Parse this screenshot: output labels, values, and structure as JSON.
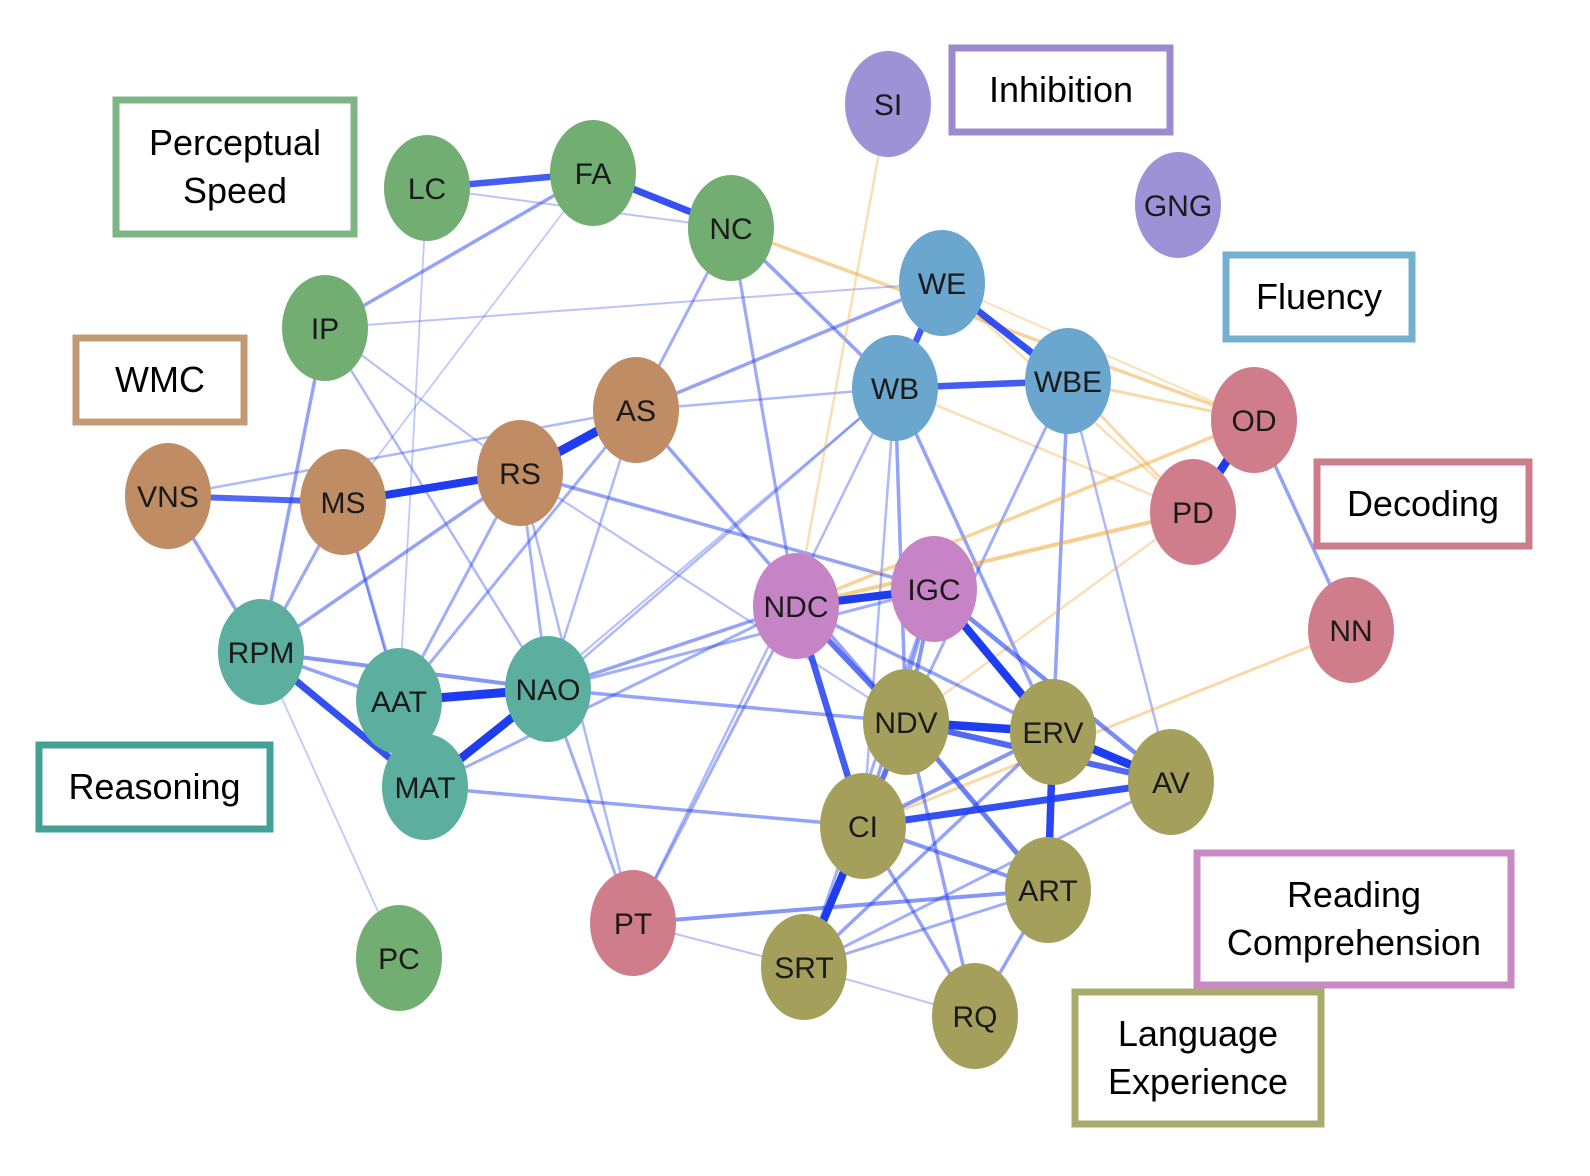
{
  "groups": {
    "perceptual_speed": {
      "label": [
        "Perceptual",
        "Speed"
      ],
      "color": "#7fb585",
      "node_color": "#72ad72"
    },
    "wmc": {
      "label": [
        "WMC"
      ],
      "color": "#c49a75",
      "node_color": "#c08c63"
    },
    "reasoning": {
      "label": [
        "Reasoning"
      ],
      "color": "#44a196",
      "node_color": "#5caf9e"
    },
    "inhibition": {
      "label": [
        "Inhibition"
      ],
      "color": "#9c8ad1",
      "node_color": "#9d92d6"
    },
    "fluency": {
      "label": [
        "Fluency"
      ],
      "color": "#74b1d1",
      "node_color": "#6aa6cd"
    },
    "decoding": {
      "label": [
        "Decoding"
      ],
      "color": "#cd7c8b",
      "node_color": "#d07d8b"
    },
    "reading_comprehension": {
      "label": [
        "Reading",
        "Comprehension"
      ],
      "color": "#c78ac3",
      "node_color": "#c683c5"
    },
    "language_experience": {
      "label": [
        "Language",
        "Experience"
      ],
      "color": "#a9ab6c",
      "node_color": "#a4a05c"
    }
  },
  "nodes": [
    {
      "id": "LC",
      "group": "perceptual_speed"
    },
    {
      "id": "FA",
      "group": "perceptual_speed"
    },
    {
      "id": "NC",
      "group": "perceptual_speed"
    },
    {
      "id": "IP",
      "group": "perceptual_speed"
    },
    {
      "id": "PC",
      "group": "perceptual_speed"
    },
    {
      "id": "VNS",
      "group": "wmc"
    },
    {
      "id": "MS",
      "group": "wmc"
    },
    {
      "id": "RS",
      "group": "wmc"
    },
    {
      "id": "AS",
      "group": "wmc"
    },
    {
      "id": "RPM",
      "group": "reasoning"
    },
    {
      "id": "AAT",
      "group": "reasoning"
    },
    {
      "id": "NAO",
      "group": "reasoning"
    },
    {
      "id": "MAT",
      "group": "reasoning"
    },
    {
      "id": "SI",
      "group": "inhibition"
    },
    {
      "id": "GNG",
      "group": "inhibition"
    },
    {
      "id": "WE",
      "group": "fluency"
    },
    {
      "id": "WB",
      "group": "fluency"
    },
    {
      "id": "WBE",
      "group": "fluency"
    },
    {
      "id": "OD",
      "group": "decoding"
    },
    {
      "id": "PD",
      "group": "decoding"
    },
    {
      "id": "NN",
      "group": "decoding"
    },
    {
      "id": "PT",
      "group": "decoding"
    },
    {
      "id": "NDC",
      "group": "reading_comprehension"
    },
    {
      "id": "IGC",
      "group": "reading_comprehension"
    },
    {
      "id": "NDV",
      "group": "language_experience"
    },
    {
      "id": "ERV",
      "group": "language_experience"
    },
    {
      "id": "AV",
      "group": "language_experience"
    },
    {
      "id": "CI",
      "group": "language_experience"
    },
    {
      "id": "ART",
      "group": "language_experience"
    },
    {
      "id": "SRT",
      "group": "language_experience"
    },
    {
      "id": "RQ",
      "group": "language_experience"
    }
  ],
  "edge_colors": {
    "positive": "#1f3df0",
    "negative": "#f0a431"
  },
  "edges": [
    {
      "source": "LC",
      "target": "FA",
      "weight": 0.55,
      "sign": "positive"
    },
    {
      "source": "FA",
      "target": "NC",
      "weight": 0.6,
      "sign": "positive"
    },
    {
      "source": "LC",
      "target": "NC",
      "weight": 0.1,
      "sign": "positive"
    },
    {
      "source": "FA",
      "target": "IP",
      "weight": 0.25,
      "sign": "positive"
    },
    {
      "source": "LC",
      "target": "AAT",
      "weight": 0.08,
      "sign": "positive"
    },
    {
      "source": "FA",
      "target": "MS",
      "weight": 0.08,
      "sign": "positive"
    },
    {
      "source": "NC",
      "target": "AS",
      "weight": 0.2,
      "sign": "positive"
    },
    {
      "source": "NC",
      "target": "WB",
      "weight": 0.25,
      "sign": "positive"
    },
    {
      "source": "NC",
      "target": "NDC",
      "weight": 0.22,
      "sign": "positive"
    },
    {
      "source": "NC",
      "target": "OD",
      "weight": 0.25,
      "sign": "negative"
    },
    {
      "source": "IP",
      "target": "RPM",
      "weight": 0.25,
      "sign": "positive"
    },
    {
      "source": "IP",
      "target": "NAO",
      "weight": 0.15,
      "sign": "positive"
    },
    {
      "source": "IP",
      "target": "WE",
      "weight": 0.1,
      "sign": "positive"
    },
    {
      "source": "IP",
      "target": "RS",
      "weight": 0.12,
      "sign": "positive"
    },
    {
      "source": "PC",
      "target": "RPM",
      "weight": 0.08,
      "sign": "positive"
    },
    {
      "source": "VNS",
      "target": "MS",
      "weight": 0.5,
      "sign": "positive"
    },
    {
      "source": "VNS",
      "target": "RPM",
      "weight": 0.25,
      "sign": "positive"
    },
    {
      "source": "VNS",
      "target": "AS",
      "weight": 0.15,
      "sign": "positive"
    },
    {
      "source": "MS",
      "target": "RS",
      "weight": 0.7,
      "sign": "positive"
    },
    {
      "source": "MS",
      "target": "RPM",
      "weight": 0.22,
      "sign": "positive"
    },
    {
      "source": "MS",
      "target": "MAT",
      "weight": 0.22,
      "sign": "positive"
    },
    {
      "source": "MS",
      "target": "AAT",
      "weight": 0.12,
      "sign": "positive"
    },
    {
      "source": "RS",
      "target": "AS",
      "weight": 0.8,
      "sign": "positive"
    },
    {
      "source": "RS",
      "target": "RPM",
      "weight": 0.25,
      "sign": "positive"
    },
    {
      "source": "RS",
      "target": "AAT",
      "weight": 0.2,
      "sign": "positive"
    },
    {
      "source": "RS",
      "target": "NAO",
      "weight": 0.18,
      "sign": "positive"
    },
    {
      "source": "RS",
      "target": "IGC",
      "weight": 0.25,
      "sign": "positive"
    },
    {
      "source": "RS",
      "target": "PT",
      "weight": 0.15,
      "sign": "positive"
    },
    {
      "source": "RS",
      "target": "NDV",
      "weight": 0.12,
      "sign": "positive"
    },
    {
      "source": "AS",
      "target": "WE",
      "weight": 0.25,
      "sign": "positive"
    },
    {
      "source": "AS",
      "target": "WB",
      "weight": 0.15,
      "sign": "positive"
    },
    {
      "source": "AS",
      "target": "AAT",
      "weight": 0.2,
      "sign": "positive"
    },
    {
      "source": "AS",
      "target": "NDV",
      "weight": 0.25,
      "sign": "positive"
    },
    {
      "source": "AS",
      "target": "NAO",
      "weight": 0.15,
      "sign": "positive"
    },
    {
      "source": "RPM",
      "target": "AAT",
      "weight": 0.25,
      "sign": "positive"
    },
    {
      "source": "RPM",
      "target": "MAT",
      "weight": 0.6,
      "sign": "positive"
    },
    {
      "source": "RPM",
      "target": "NAO",
      "weight": 0.3,
      "sign": "positive"
    },
    {
      "source": "AAT",
      "target": "NAO",
      "weight": 0.8,
      "sign": "positive"
    },
    {
      "source": "AAT",
      "target": "MAT",
      "weight": 0.25,
      "sign": "positive"
    },
    {
      "source": "NAO",
      "target": "MAT",
      "weight": 0.75,
      "sign": "positive"
    },
    {
      "source": "NAO",
      "target": "NDC",
      "weight": 0.25,
      "sign": "positive"
    },
    {
      "source": "NAO",
      "target": "NDV",
      "weight": 0.25,
      "sign": "positive"
    },
    {
      "source": "NAO",
      "target": "IGC",
      "weight": 0.2,
      "sign": "positive"
    },
    {
      "source": "NAO",
      "target": "WB",
      "weight": 0.15,
      "sign": "positive"
    },
    {
      "source": "NAO",
      "target": "PT",
      "weight": 0.2,
      "sign": "positive"
    },
    {
      "source": "MAT",
      "target": "CI",
      "weight": 0.25,
      "sign": "positive"
    },
    {
      "source": "MAT",
      "target": "NDC",
      "weight": 0.2,
      "sign": "positive"
    },
    {
      "source": "MAT",
      "target": "WB",
      "weight": 0.12,
      "sign": "positive"
    },
    {
      "source": "SI",
      "target": "NDC",
      "weight": 0.15,
      "sign": "negative"
    },
    {
      "source": "WE",
      "target": "WB",
      "weight": 0.55,
      "sign": "positive"
    },
    {
      "source": "WE",
      "target": "WBE",
      "weight": 0.6,
      "sign": "positive"
    },
    {
      "source": "WE",
      "target": "PD",
      "weight": 0.15,
      "sign": "negative"
    },
    {
      "source": "WB",
      "target": "WBE",
      "weight": 0.55,
      "sign": "positive"
    },
    {
      "source": "WB",
      "target": "PD",
      "weight": 0.15,
      "sign": "negative"
    },
    {
      "source": "WB",
      "target": "NDV",
      "weight": 0.25,
      "sign": "positive"
    },
    {
      "source": "WB",
      "target": "ERV",
      "weight": 0.25,
      "sign": "positive"
    },
    {
      "source": "WB",
      "target": "CI",
      "weight": 0.15,
      "sign": "positive"
    },
    {
      "source": "WB",
      "target": "PT",
      "weight": 0.15,
      "sign": "positive"
    },
    {
      "source": "WBE",
      "target": "OD",
      "weight": 0.2,
      "sign": "negative"
    },
    {
      "source": "WBE",
      "target": "PD",
      "weight": 0.2,
      "sign": "negative"
    },
    {
      "source": "WBE",
      "target": "ERV",
      "weight": 0.25,
      "sign": "positive"
    },
    {
      "source": "WBE",
      "target": "AV",
      "weight": 0.15,
      "sign": "positive"
    },
    {
      "source": "WBE",
      "target": "NDV",
      "weight": 0.2,
      "sign": "positive"
    },
    {
      "source": "OD",
      "target": "PD",
      "weight": 0.75,
      "sign": "positive"
    },
    {
      "source": "OD",
      "target": "NN",
      "weight": 0.25,
      "sign": "positive"
    },
    {
      "source": "OD",
      "target": "NDC",
      "weight": 0.25,
      "sign": "negative"
    },
    {
      "source": "OD",
      "target": "WE",
      "weight": 0.12,
      "sign": "negative"
    },
    {
      "source": "PD",
      "target": "NDC",
      "weight": 0.3,
      "sign": "negative"
    },
    {
      "source": "PD",
      "target": "NDV",
      "weight": 0.15,
      "sign": "negative"
    },
    {
      "source": "NN",
      "target": "CI",
      "weight": 0.2,
      "sign": "negative"
    },
    {
      "source": "NDC",
      "target": "IGC",
      "weight": 0.7,
      "sign": "positive"
    },
    {
      "source": "NDC",
      "target": "NDV",
      "weight": 0.45,
      "sign": "positive"
    },
    {
      "source": "NDC",
      "target": "CI",
      "weight": 0.55,
      "sign": "positive"
    },
    {
      "source": "NDC",
      "target": "ERV",
      "weight": 0.25,
      "sign": "positive"
    },
    {
      "source": "NDC",
      "target": "PT",
      "weight": 0.2,
      "sign": "positive"
    },
    {
      "source": "IGC",
      "target": "ERV",
      "weight": 0.7,
      "sign": "positive"
    },
    {
      "source": "IGC",
      "target": "NDV",
      "weight": 0.3,
      "sign": "positive"
    },
    {
      "source": "IGC",
      "target": "AV",
      "weight": 0.35,
      "sign": "positive"
    },
    {
      "source": "IGC",
      "target": "CI",
      "weight": 0.25,
      "sign": "positive"
    },
    {
      "source": "IGC",
      "target": "SRT",
      "weight": 0.2,
      "sign": "positive"
    },
    {
      "source": "NDV",
      "target": "ERV",
      "weight": 0.75,
      "sign": "positive"
    },
    {
      "source": "NDV",
      "target": "AV",
      "weight": 0.5,
      "sign": "positive"
    },
    {
      "source": "NDV",
      "target": "CI",
      "weight": 0.45,
      "sign": "positive"
    },
    {
      "source": "NDV",
      "target": "ART",
      "weight": 0.4,
      "sign": "positive"
    },
    {
      "source": "NDV",
      "target": "RQ",
      "weight": 0.25,
      "sign": "positive"
    },
    {
      "source": "ERV",
      "target": "AV",
      "weight": 0.75,
      "sign": "positive"
    },
    {
      "source": "ERV",
      "target": "ART",
      "weight": 0.65,
      "sign": "positive"
    },
    {
      "source": "ERV",
      "target": "CI",
      "weight": 0.3,
      "sign": "positive"
    },
    {
      "source": "ERV",
      "target": "SRT",
      "weight": 0.25,
      "sign": "positive"
    },
    {
      "source": "AV",
      "target": "CI",
      "weight": 0.6,
      "sign": "positive"
    },
    {
      "source": "AV",
      "target": "SRT",
      "weight": 0.2,
      "sign": "positive"
    },
    {
      "source": "CI",
      "target": "SRT",
      "weight": 0.7,
      "sign": "positive"
    },
    {
      "source": "CI",
      "target": "ART",
      "weight": 0.3,
      "sign": "positive"
    },
    {
      "source": "CI",
      "target": "RQ",
      "weight": 0.25,
      "sign": "positive"
    },
    {
      "source": "ART",
      "target": "SRT",
      "weight": 0.2,
      "sign": "positive"
    },
    {
      "source": "ART",
      "target": "RQ",
      "weight": 0.25,
      "sign": "positive"
    },
    {
      "source": "ART",
      "target": "PT",
      "weight": 0.3,
      "sign": "positive"
    },
    {
      "source": "SRT",
      "target": "RQ",
      "weight": 0.1,
      "sign": "positive"
    },
    {
      "source": "PT",
      "target": "SRT",
      "weight": 0.1,
      "sign": "positive"
    }
  ]
}
